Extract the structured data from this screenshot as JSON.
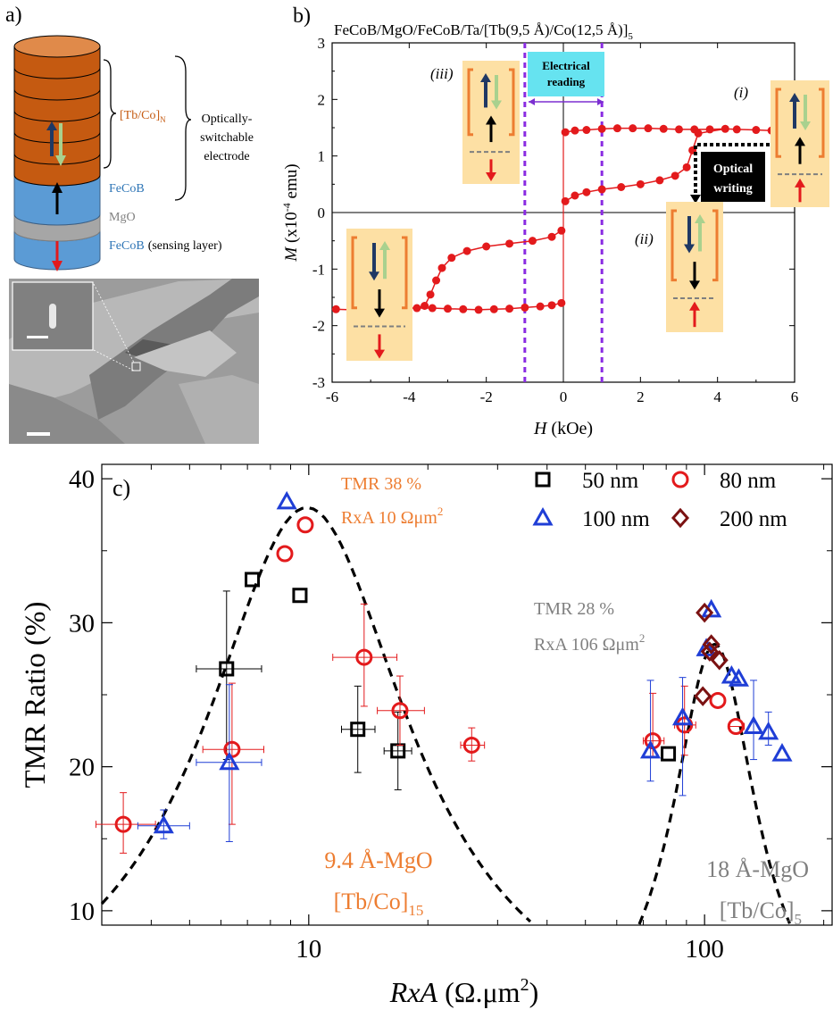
{
  "panels": {
    "a": {
      "label": "a)",
      "stack_label": "[Tb/Co]",
      "stack_sub": "N",
      "electrode_label": [
        "Optically-",
        "switchable",
        "electrode"
      ],
      "fecob_top": "FeCoB",
      "mgo": "MgO",
      "fecob_bottom": "FeCoB",
      "sensing": "(sensing layer)"
    },
    "b": {
      "label": "b)"
    },
    "c": {
      "label": "c)"
    }
  },
  "chart_data": [
    {
      "type": "scatter",
      "panel": "b",
      "title": "FeCoB/MgO/FeCoB/Ta/[Tb(9,5 Å)/Co(12,5 Å)]",
      "title_sub": "5",
      "xlabel_italic": "H",
      "xlabel_rest": " (kOe)",
      "ylabel_italic": "M",
      "ylabel_rest": " (x10",
      "ylabel_sup": "-4",
      "ylabel_end": " emu)",
      "xlim": [
        -6,
        6
      ],
      "ylim": [
        -3,
        3
      ],
      "xticks": [
        "-6",
        "-4",
        "-2",
        "0",
        "2",
        "4",
        "6"
      ],
      "xtick_values": [
        -6,
        -4,
        -2,
        0,
        2,
        4,
        6
      ],
      "yticks": [
        "-3",
        "-2",
        "-1",
        "0",
        "1",
        "2",
        "3"
      ],
      "ytick_values": [
        -3,
        -2,
        -1,
        0,
        1,
        2,
        3
      ],
      "series": [
        {
          "color": "#e31a1c",
          "points_upper": [
            [
              0.05,
              1.42
            ],
            [
              0.3,
              1.45
            ],
            [
              0.6,
              1.46
            ],
            [
              1.0,
              1.48
            ],
            [
              1.4,
              1.49
            ],
            [
              1.8,
              1.49
            ],
            [
              2.2,
              1.49
            ],
            [
              2.6,
              1.48
            ],
            [
              3.0,
              1.47
            ],
            [
              3.4,
              1.47
            ],
            [
              3.8,
              1.47
            ],
            [
              4.2,
              1.48
            ],
            [
              4.5,
              1.47
            ],
            [
              5.0,
              1.46
            ],
            [
              5.4,
              1.45
            ],
            [
              5.8,
              1.44
            ]
          ],
          "points_mid_upper": [
            [
              0.05,
              0.2
            ],
            [
              0.3,
              0.3
            ],
            [
              0.6,
              0.36
            ],
            [
              1.0,
              0.41
            ],
            [
              1.5,
              0.45
            ],
            [
              2.0,
              0.5
            ],
            [
              2.5,
              0.57
            ],
            [
              2.9,
              0.65
            ],
            [
              3.2,
              0.8
            ],
            [
              3.35,
              1.1
            ],
            [
              3.5,
              1.4
            ]
          ],
          "points_mid_lower": [
            [
              -0.05,
              -0.32
            ],
            [
              -0.3,
              -0.43
            ],
            [
              -0.8,
              -0.5
            ],
            [
              -1.4,
              -0.55
            ],
            [
              -2.0,
              -0.6
            ],
            [
              -2.5,
              -0.68
            ],
            [
              -2.9,
              -0.8
            ],
            [
              -3.15,
              -0.98
            ],
            [
              -3.3,
              -1.2
            ],
            [
              -3.45,
              -1.45
            ],
            [
              -3.6,
              -1.65
            ]
          ],
          "points_lower": [
            [
              -5.9,
              -1.71
            ],
            [
              -5.5,
              -1.72
            ],
            [
              -5.0,
              -1.71
            ],
            [
              -4.6,
              -1.7
            ],
            [
              -4.2,
              -1.69
            ],
            [
              -3.8,
              -1.69
            ],
            [
              -3.4,
              -1.69
            ],
            [
              -3.0,
              -1.7
            ],
            [
              -2.6,
              -1.71
            ],
            [
              -2.2,
              -1.72
            ],
            [
              -1.8,
              -1.71
            ],
            [
              -1.4,
              -1.7
            ],
            [
              -1.0,
              -1.68
            ],
            [
              -0.6,
              -1.66
            ],
            [
              -0.3,
              -1.64
            ],
            [
              -0.05,
              -1.6
            ]
          ]
        }
      ],
      "annotations": {
        "electrical_reading": [
          "Electrical",
          "reading"
        ],
        "optical_writing": [
          "Optical",
          "writing"
        ],
        "state_i": "(i)",
        "state_ii": "(ii)",
        "state_iii": "(iii)",
        "dashed_lines_at_H": [
          -1,
          1
        ]
      }
    },
    {
      "type": "scatter",
      "panel": "c",
      "xlabel_italic": "RxA",
      "xlabel_rest": " (Ω.μm",
      "xlabel_sup": "2",
      "xlabel_end": ")",
      "ylabel": "TMR Ratio (%)",
      "x_scale": "log",
      "xlim": [
        3,
        210
      ],
      "ylim": [
        9,
        41
      ],
      "xticks": [
        "10",
        "100"
      ],
      "xtick_values": [
        10,
        100
      ],
      "yticks": [
        "10",
        "20",
        "30",
        "40"
      ],
      "ytick_values": [
        10,
        20,
        30,
        40
      ],
      "legend_position": "top-right",
      "series": [
        {
          "name": "50 nm",
          "marker": "square",
          "color": "#000000",
          "points": [
            [
              6.2,
              26.8
            ],
            [
              7.2,
              33.0
            ],
            [
              9.5,
              31.9
            ],
            [
              13.3,
              22.6
            ],
            [
              16.8,
              21.1
            ],
            [
              81,
              20.9
            ]
          ],
          "xerr": [
            [
              5.2,
              7.6
            ],
            [
              null,
              null
            ],
            [
              null,
              null
            ],
            [
              12.1,
              14.7
            ],
            [
              15.5,
              18.2
            ],
            [
              null,
              null
            ]
          ],
          "yerr": [
            [
              20.5,
              32.2
            ],
            [
              null,
              null
            ],
            [
              null,
              null
            ],
            [
              19.6,
              25.6
            ],
            [
              18.4,
              23.8
            ],
            [
              null,
              null
            ]
          ]
        },
        {
          "name": "80 nm",
          "marker": "circle",
          "color": "#e31a1c",
          "points": [
            [
              3.4,
              16.0
            ],
            [
              6.4,
              21.2
            ],
            [
              8.7,
              34.8
            ],
            [
              9.8,
              36.8
            ],
            [
              13.8,
              27.6
            ],
            [
              17.0,
              23.9
            ],
            [
              25.8,
              21.5
            ],
            [
              74,
              21.8
            ],
            [
              89,
              22.9
            ],
            [
              108,
              24.6
            ],
            [
              120,
              22.8
            ]
          ],
          "xerr": [
            [
              2.9,
              4.1
            ],
            [
              5.4,
              7.7
            ],
            [
              null,
              null
            ],
            [
              null,
              null
            ],
            [
              11.5,
              16.7
            ],
            [
              14.9,
              19.6
            ],
            [
              24.2,
              27.8
            ],
            [
              70,
              79
            ],
            [
              84,
              95
            ],
            [
              null,
              null
            ],
            [
              115,
              126
            ]
          ],
          "yerr": [
            [
              14.0,
              18.2
            ],
            [
              16.0,
              25.8
            ],
            [
              null,
              null
            ],
            [
              null,
              null
            ],
            [
              24.2,
              31.3
            ],
            [
              21.5,
              26.3
            ],
            [
              20.4,
              22.7
            ],
            [
              20.7,
              25.1
            ],
            [
              20.8,
              25.6
            ],
            [
              null,
              null
            ],
            [
              null,
              null
            ]
          ]
        },
        {
          "name": "100 nm",
          "marker": "triangle",
          "color": "#1f3ed6",
          "points": [
            [
              4.3,
              15.9
            ],
            [
              6.3,
              20.3
            ],
            [
              8.8,
              38.4
            ],
            [
              73,
              21.1
            ],
            [
              88,
              23.4
            ],
            [
              101,
              28.2
            ],
            [
              104,
              30.9
            ],
            [
              117,
              26.3
            ],
            [
              122,
              26.1
            ],
            [
              133,
              22.8
            ],
            [
              145,
              22.4
            ],
            [
              157,
              20.9
            ]
          ],
          "xerr": [
            [
              3.7,
              5.0
            ],
            [
              5.2,
              7.6
            ],
            [
              null,
              null
            ],
            [
              null,
              null
            ],
            [
              null,
              null
            ],
            [
              null,
              null
            ],
            [
              null,
              null
            ],
            [
              null,
              null
            ],
            [
              null,
              null
            ],
            [
              null,
              null
            ],
            [
              null,
              null
            ],
            [
              null,
              null
            ]
          ],
          "yerr": [
            [
              15.0,
              17.0
            ],
            [
              14.8,
              25.7
            ],
            [
              null,
              null
            ],
            [
              19.0,
              26.0
            ],
            [
              18.0,
              26.2
            ],
            [
              null,
              null
            ],
            [
              null,
              null
            ],
            [
              null,
              null
            ],
            [
              null,
              null
            ],
            [
              20.5,
              26.0
            ],
            [
              21.5,
              23.8
            ],
            [
              null,
              null
            ]
          ]
        },
        {
          "name": "200 nm",
          "marker": "diamond",
          "color": "#7b1212",
          "points": [
            [
              99,
              24.9
            ],
            [
              100,
              30.7
            ],
            [
              103,
              28.0
            ],
            [
              104,
              28.5
            ],
            [
              109,
              27.4
            ]
          ],
          "xerr": [
            [
              null,
              null
            ],
            [
              null,
              null
            ],
            [
              null,
              null
            ],
            [
              null,
              null
            ],
            [
              null,
              null
            ]
          ],
          "yerr": [
            [
              null,
              null
            ],
            [
              null,
              null
            ],
            [
              null,
              null
            ],
            [
              null,
              null
            ],
            [
              null,
              null
            ]
          ]
        }
      ],
      "fits": [
        {
          "center": 9.9,
          "peak": 38.0,
          "xrange": [
            3.0,
            40
          ]
        },
        {
          "center": 106,
          "peak": 28.5,
          "xrange": [
            66,
            170
          ]
        }
      ],
      "annotations": {
        "tmr38": "TMR 38 %",
        "rxa10": "RxA 10 Ωμm",
        "rxa10_sup": "2",
        "tmr28": "TMR 28 %",
        "rxa106": "RxA 106 Ωμm",
        "rxa106_sup": "2",
        "mgo94": "9.4 Å-MgO",
        "tbco15": "[Tb/Co]",
        "tbco15_sub": "15",
        "mgo18": "18 Å-MgO",
        "tbco5": "[Tb/Co]",
        "tbco5_sub": "5"
      }
    }
  ]
}
